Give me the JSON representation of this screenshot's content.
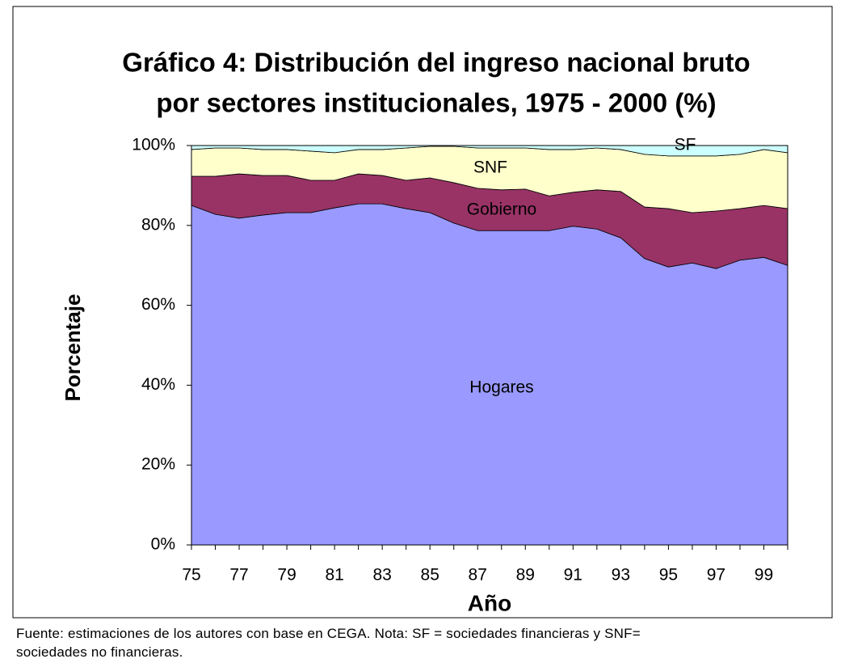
{
  "chart_data": {
    "type": "stacked_area",
    "title": [
      "Gráfico 4: Distribución del ingreso nacional bruto",
      "por sectores institucionales, 1975 - 2000 (%)"
    ],
    "x_label": "Año",
    "y_label": "Porcentaje",
    "note": "Fuente: estimaciones de los autores con base en CEGA. Nota: SF = sociedades financieras y SNF= sociedades no financieras.",
    "categories": [
      "75",
      null,
      "77",
      null,
      "79",
      null,
      "81",
      null,
      "83",
      null,
      "85",
      null,
      "87",
      null,
      "89",
      null,
      "91",
      null,
      "93",
      null,
      "95",
      null,
      "97",
      null,
      "99",
      null
    ],
    "series": [
      {
        "name": "Hogares",
        "color": "#9999ff",
        "values": [
          85,
          82.8,
          81.8,
          82.6,
          83.2,
          83.2,
          84.4,
          85.4,
          85.4,
          84.2,
          83.2,
          80.6,
          78.7,
          78.7,
          78.7,
          78.7,
          79.8,
          79.1,
          76.9,
          71.7,
          69.6,
          70.6,
          69.2,
          71.3,
          72,
          70
        ]
      },
      {
        "name": "Gobierno",
        "color": "#993366",
        "values": [
          7.3,
          9.5,
          11.1,
          9.9,
          9.3,
          8.1,
          6.9,
          7.5,
          7.1,
          7.1,
          8.7,
          10.1,
          10.6,
          10.2,
          10.4,
          8.7,
          8.5,
          9.8,
          11.6,
          12.9,
          14.6,
          12.6,
          14.4,
          12.9,
          13,
          14.2
        ]
      },
      {
        "name": "SNF",
        "color": "#ffffcc",
        "values": [
          6.7,
          7.1,
          6.5,
          6.5,
          6.5,
          7.3,
          6.9,
          6.1,
          6.5,
          8.1,
          7.9,
          9.1,
          10.1,
          10.5,
          10.3,
          11.6,
          10.7,
          10.5,
          10.5,
          13.2,
          13.2,
          14.2,
          13.8,
          13.6,
          14,
          14
        ]
      },
      {
        "name": "SF",
        "color": "#ccffff",
        "values": [
          1,
          0.6,
          0.6,
          1,
          1,
          1.4,
          1.8,
          1,
          1,
          0.6,
          0.2,
          0.2,
          0.6,
          0.6,
          0.6,
          1,
          1,
          0.6,
          1,
          2.2,
          2.6,
          2.6,
          2.6,
          2.2,
          1,
          1.8
        ]
      }
    ],
    "ylim": [
      0,
      100
    ],
    "yticks": [
      {
        "value": 0,
        "label": "0%"
      },
      {
        "value": 20,
        "label": "20%"
      },
      {
        "value": 40,
        "label": "40%"
      },
      {
        "value": 60,
        "label": "60%"
      },
      {
        "value": 80,
        "label": "80%"
      },
      {
        "value": 100,
        "label": "100%"
      }
    ]
  }
}
